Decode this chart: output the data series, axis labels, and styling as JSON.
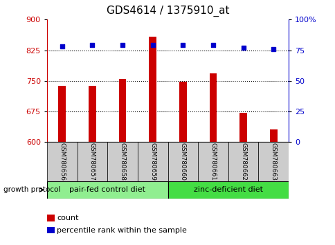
{
  "title": "GDS4614 / 1375910_at",
  "samples": [
    "GSM780656",
    "GSM780657",
    "GSM780658",
    "GSM780659",
    "GSM780660",
    "GSM780661",
    "GSM780662",
    "GSM780663"
  ],
  "counts": [
    738,
    737,
    755,
    858,
    748,
    769,
    671,
    631
  ],
  "percentiles": [
    78,
    79,
    79,
    79,
    79,
    79,
    77,
    76
  ],
  "ylim_left": [
    600,
    900
  ],
  "ylim_right": [
    0,
    100
  ],
  "yticks_left": [
    600,
    675,
    750,
    825,
    900
  ],
  "yticks_right": [
    0,
    25,
    50,
    75,
    100
  ],
  "hlines": [
    675,
    750,
    825
  ],
  "bar_color": "#cc0000",
  "dot_color": "#0000cc",
  "bar_bottom": 600,
  "groups": [
    {
      "label": "pair-fed control diet",
      "start": 0,
      "end": 4,
      "color": "#90ee90"
    },
    {
      "label": "zinc-deficient diet",
      "start": 4,
      "end": 8,
      "color": "#44dd44"
    }
  ],
  "group_row_color": "#cccccc",
  "growth_protocol_label": "growth protocol",
  "legend_count_label": "count",
  "legend_pct_label": "percentile rank within the sample",
  "title_fontsize": 11,
  "tick_fontsize": 8,
  "label_color_left": "#cc0000",
  "label_color_right": "#0000cc",
  "bar_width": 0.25,
  "sample_label_fontsize": 6.5,
  "group_label_fontsize": 8,
  "legend_fontsize": 8
}
